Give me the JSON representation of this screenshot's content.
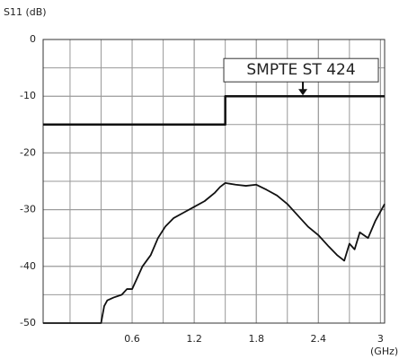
{
  "chart_data": {
    "type": "line",
    "title": "S11 (dB)",
    "x_label": "(GHz)",
    "xlim": [
      -0.26,
      3.04
    ],
    "ylim": [
      -50,
      0
    ],
    "xticks": [
      0.6,
      1.2,
      1.8,
      2.4,
      3.0
    ],
    "yticks": [
      0,
      -10,
      -20,
      -30,
      -40,
      -50
    ],
    "xgrid": [
      0.0,
      0.3,
      0.6,
      0.9,
      1.2,
      1.5,
      1.8,
      2.1,
      2.4,
      2.7,
      3.0
    ],
    "ygrid": [
      -5,
      -10,
      -15,
      -20,
      -25,
      -30,
      -35,
      -40,
      -45
    ],
    "grid": true,
    "annotation": {
      "text": "SMPTE ST  424",
      "x": 2.25,
      "y": -10
    },
    "series": [
      {
        "name": "SMPTE ST  424",
        "color": "#111111",
        "x": [
          -0.26,
          1.5,
          1.5,
          3.04
        ],
        "values": [
          -15,
          -15,
          -10,
          -10
        ]
      },
      {
        "name": "S11",
        "color": "#111111",
        "x": [
          -0.26,
          0.3,
          0.33,
          0.36,
          0.42,
          0.5,
          0.55,
          0.6,
          0.65,
          0.7,
          0.78,
          0.85,
          0.92,
          1.0,
          1.1,
          1.2,
          1.3,
          1.4,
          1.45,
          1.5,
          1.6,
          1.7,
          1.8,
          1.9,
          2.0,
          2.1,
          2.2,
          2.3,
          2.4,
          2.5,
          2.58,
          2.65,
          2.7,
          2.75,
          2.8,
          2.88,
          2.95,
          3.04
        ],
        "values": [
          -50,
          -50,
          -47,
          -46,
          -45.5,
          -45,
          -44,
          -44,
          -42,
          -40,
          -38,
          -35,
          -33,
          -31.5,
          -30.5,
          -29.5,
          -28.5,
          -27,
          -26,
          -25.3,
          -25.6,
          -25.8,
          -25.6,
          -26.5,
          -27.5,
          -29,
          -31,
          -33,
          -34.5,
          -36.5,
          -38,
          -39,
          -36,
          -37,
          -34,
          -35,
          -32,
          -29
        ]
      }
    ]
  }
}
